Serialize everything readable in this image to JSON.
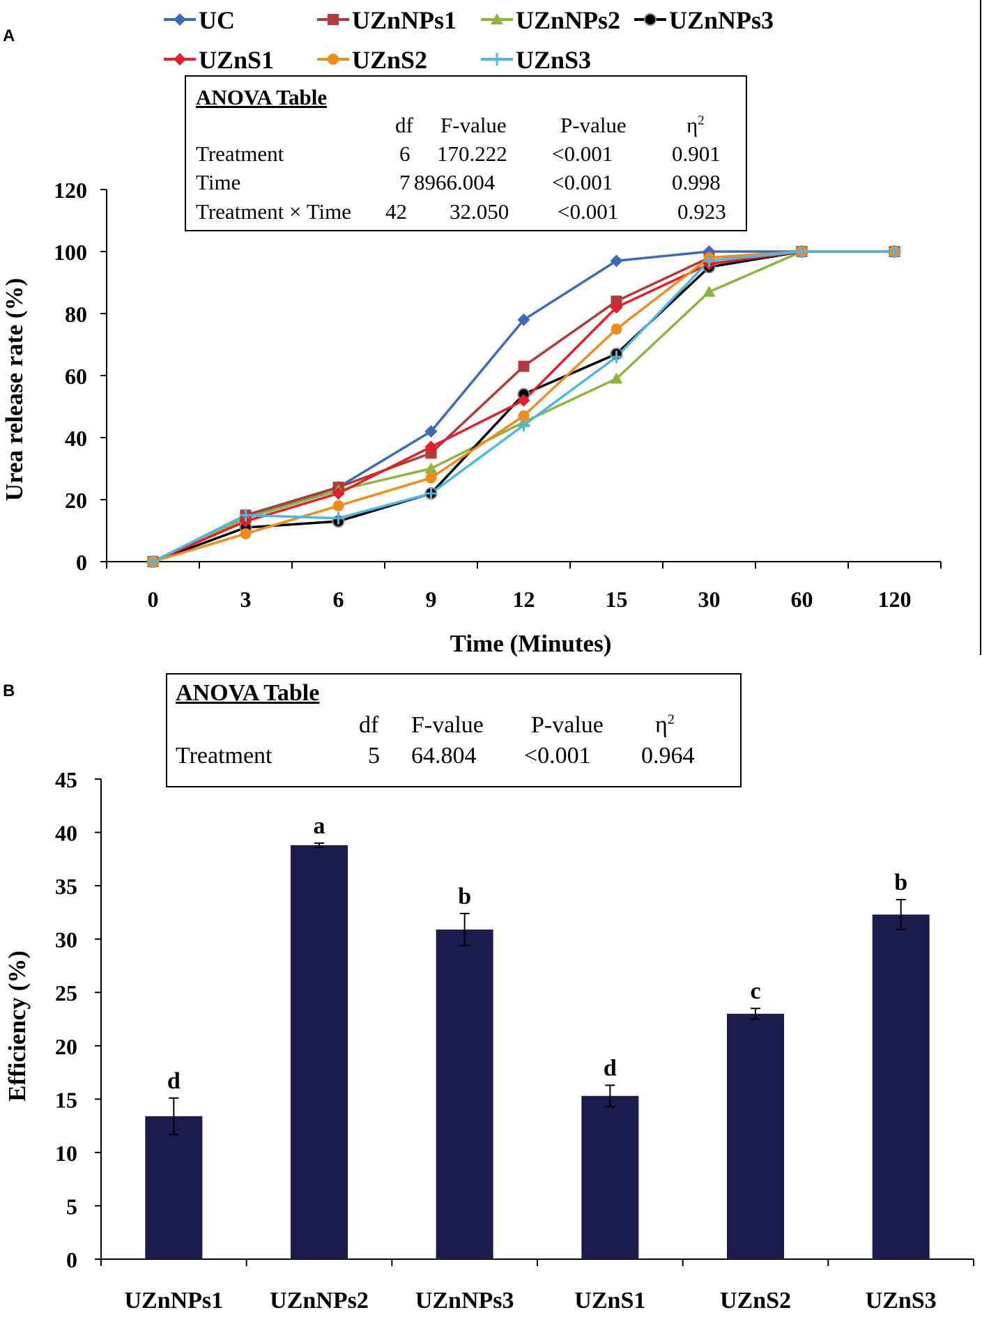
{
  "panels": {
    "a_label": "A",
    "b_label": "B"
  },
  "anova_a": {
    "title": "ANOVA Table",
    "headers": [
      "df",
      "F-value",
      "P-value",
      "η",
      "2"
    ],
    "rows": [
      {
        "label": "Treatment",
        "df": "6",
        "f": "170.222",
        "p": "<0.001",
        "eta": "0.901"
      },
      {
        "label": "Time",
        "df": "7",
        "f": "8966.004",
        "p": "<0.001",
        "eta": "0.998"
      },
      {
        "label": "Treatment × Time",
        "df": "42",
        "f": "32.050",
        "p": "<0.001",
        "eta": "0.923"
      }
    ]
  },
  "anova_b": {
    "title": "ANOVA Table",
    "headers": [
      "df",
      "F-value",
      "P-value",
      "η",
      "2"
    ],
    "rows": [
      {
        "label": "Treatment",
        "df": "5",
        "f": "64.804",
        "p": "<0.001",
        "eta": "0.964"
      }
    ]
  },
  "chart_data": [
    {
      "type": "line",
      "title": "",
      "xlabel": "Time (Minutes)",
      "ylabel": "Urea release rate (%)",
      "categories": [
        "0",
        "3",
        "6",
        "9",
        "12",
        "15",
        "30",
        "60",
        "120"
      ],
      "ylim": [
        0,
        120
      ],
      "yticks": [
        0,
        20,
        40,
        60,
        80,
        100,
        120
      ],
      "legend_position": "top",
      "series": [
        {
          "name": "UC",
          "color": "#3A6CB5",
          "marker": "diamond",
          "values": [
            0,
            14,
            24,
            42,
            78,
            97,
            100,
            100,
            100
          ]
        },
        {
          "name": "UZnNPs1",
          "color": "#B13A3A",
          "marker": "square",
          "values": [
            0,
            15,
            24,
            35,
            63,
            84,
            98,
            100,
            100
          ]
        },
        {
          "name": "UZnNPs2",
          "color": "#8CB43F",
          "marker": "triangle",
          "values": [
            0,
            14,
            23,
            30,
            45,
            59,
            87,
            100,
            100
          ]
        },
        {
          "name": "UZnNPs3",
          "color": "#000000",
          "marker": "circle-hollow",
          "values": [
            0,
            11,
            13,
            22,
            54,
            67,
            95,
            100,
            100
          ]
        },
        {
          "name": "UZnS1",
          "color": "#E0202A",
          "marker": "diamond",
          "values": [
            0,
            13,
            22,
            37,
            52,
            82,
            96,
            100,
            100
          ]
        },
        {
          "name": "UZnS2",
          "color": "#F08C1E",
          "marker": "circle",
          "values": [
            0,
            9,
            18,
            27,
            47,
            75,
            98,
            100,
            100
          ]
        },
        {
          "name": "UZnS3",
          "color": "#4FB6E6",
          "marker": "plus",
          "values": [
            0,
            15,
            14,
            22,
            44,
            66,
            97,
            100,
            100
          ]
        }
      ]
    },
    {
      "type": "bar",
      "title": "",
      "xlabel": "",
      "ylabel": "Efficiency (%)",
      "categories": [
        "UZnNPs1",
        "UZnNPs2",
        "UZnNPs3",
        "UZnS1",
        "UZnS2",
        "UZnS3"
      ],
      "values": [
        13.4,
        38.8,
        30.9,
        15.3,
        23.0,
        32.3
      ],
      "errors": [
        1.7,
        0.2,
        1.5,
        1.0,
        0.5,
        1.4
      ],
      "letters": [
        "d",
        "a",
        "b",
        "d",
        "c",
        "b"
      ],
      "ylim": [
        0,
        45
      ],
      "yticks": [
        0,
        5,
        10,
        15,
        20,
        25,
        30,
        35,
        40,
        45
      ],
      "bar_color": "#1C1B4E"
    }
  ]
}
